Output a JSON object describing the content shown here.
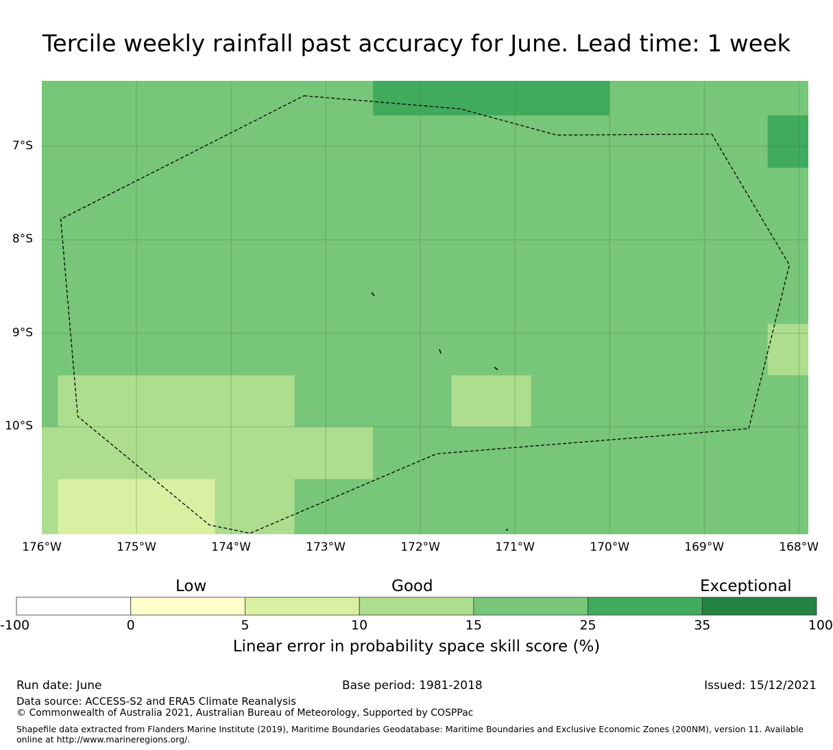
{
  "title": "Tercile weekly rainfall past accuracy for June. Lead time: 1 week",
  "map": {
    "lat_labels": [
      "7°S",
      "8°S",
      "9°S",
      "10°S"
    ],
    "lon_labels": [
      "176°W",
      "175°W",
      "174°W",
      "173°W",
      "172°W",
      "171°W",
      "170°W",
      "169°W",
      "168°W"
    ],
    "extent": {
      "lon_min": -176.0,
      "lon_max": -167.9,
      "lat_min": -11.15,
      "lat_max": -6.3
    },
    "base_class": "15-25",
    "cells": [
      {
        "lon": [
          -172.5,
          -170.0
        ],
        "lat": [
          -6.3,
          -6.67
        ],
        "class": "25-35"
      },
      {
        "lon": [
          -168.33,
          -167.9
        ],
        "lat": [
          -6.67,
          -7.23
        ],
        "class": "25-35"
      },
      {
        "lon": [
          -168.33,
          -167.9
        ],
        "lat": [
          -8.9,
          -9.45
        ],
        "class": "10-15"
      },
      {
        "lon": [
          -175.83,
          -173.33
        ],
        "lat": [
          -9.45,
          -10.0
        ],
        "class": "10-15"
      },
      {
        "lon": [
          -171.67,
          -170.83
        ],
        "lat": [
          -9.45,
          -10.0
        ],
        "class": "10-15"
      },
      {
        "lon": [
          -176.0,
          -172.5
        ],
        "lat": [
          -10.0,
          -10.56
        ],
        "class": "10-15"
      },
      {
        "lon": [
          -176.0,
          -173.33
        ],
        "lat": [
          -10.56,
          -11.15
        ],
        "class": "10-15"
      },
      {
        "lon": [
          -175.83,
          -174.17
        ],
        "lat": [
          -10.56,
          -11.15
        ],
        "class": "5-10"
      }
    ],
    "eez_boundary": [
      [
        -173.23,
        -6.46
      ],
      [
        -171.58,
        -6.6
      ],
      [
        -170.56,
        -6.88
      ],
      [
        -168.92,
        -6.87
      ],
      [
        -168.1,
        -8.27
      ],
      [
        -168.53,
        -10.02
      ],
      [
        -171.83,
        -10.29
      ],
      [
        -173.8,
        -11.14
      ],
      [
        -174.23,
        -11.05
      ],
      [
        -175.62,
        -9.89
      ],
      [
        -175.8,
        -7.78
      ],
      [
        -173.23,
        -6.46
      ]
    ]
  },
  "colorbar": {
    "categories": [
      "Low",
      "Good",
      "Exceptional"
    ],
    "ticks": [
      "-100",
      "0",
      "5",
      "10",
      "15",
      "25",
      "35",
      "100"
    ],
    "classes": [
      {
        "key": "-100-0",
        "color": "#ffffff"
      },
      {
        "key": "0-5",
        "color": "#ffffcc"
      },
      {
        "key": "5-10",
        "color": "#d9f0a3"
      },
      {
        "key": "10-15",
        "color": "#addd8e"
      },
      {
        "key": "15-25",
        "color": "#78c679"
      },
      {
        "key": "25-35",
        "color": "#41ab5d"
      },
      {
        "key": "35-100",
        "color": "#238443"
      }
    ],
    "caption": "Linear error in probability space skill score (%)"
  },
  "footer": {
    "run_date": "Run date: June",
    "base_period": "Base period: 1981-2018",
    "issued": "Issued: 15/12/2021",
    "data_source": "Data source: ACCESS-S2 and ERA5 Climate Reanalysis",
    "copyright": "© Commonwealth of Australia 2021, Australian Bureau of Meteorology, Supported by COSPPac",
    "shapefile_note": "Shapefile data extracted from Flanders Marine Institute (2019), Maritime Boundaries Geodatabase: Maritime Boundaries and Exclusive Economic Zones (200NM), version 11. Available online at http://www.marineregions.org/."
  }
}
